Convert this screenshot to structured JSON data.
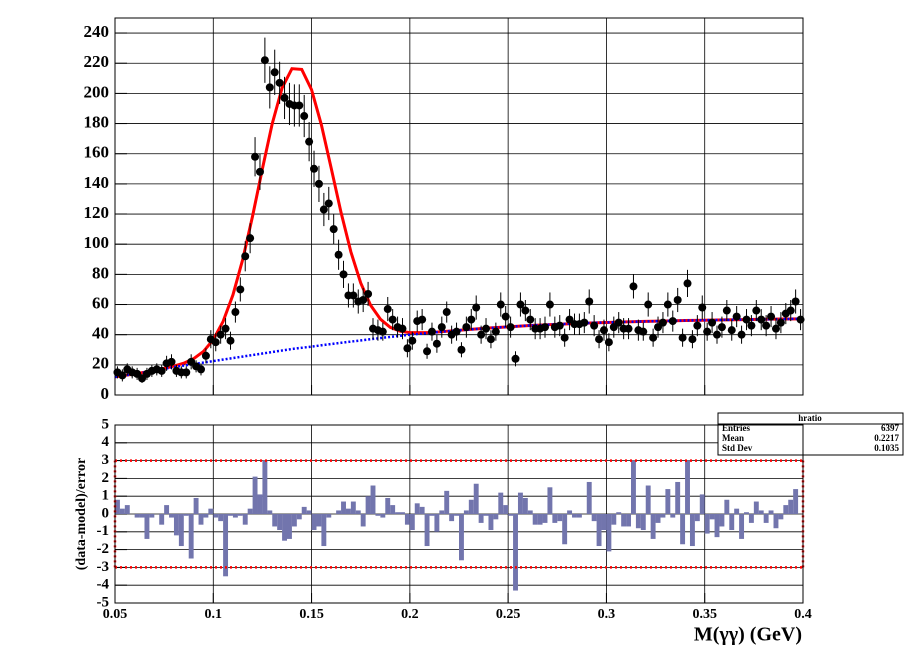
{
  "chart_data": [
    {
      "type": "scatter",
      "bins": [
        0.05,
        0.0525,
        0.055,
        0.0575,
        0.06,
        0.0625,
        0.065,
        0.0675,
        0.07,
        0.0725,
        0.075,
        0.0775,
        0.08,
        0.0825,
        0.085,
        0.0875,
        0.09,
        0.0925,
        0.095,
        0.0975,
        0.1,
        0.1025,
        0.105,
        0.1075,
        0.11,
        0.1125,
        0.115,
        0.1175,
        0.12,
        0.1225,
        0.125,
        0.1275,
        0.13,
        0.1325,
        0.135,
        0.1375,
        0.14,
        0.1425,
        0.145,
        0.1475,
        0.15,
        0.1525,
        0.155,
        0.1575,
        0.16,
        0.1625,
        0.165,
        0.1675,
        0.17,
        0.1725,
        0.175,
        0.1775,
        0.18,
        0.1825,
        0.185,
        0.1875,
        0.19,
        0.1925,
        0.195,
        0.1975,
        0.2,
        0.2025,
        0.205,
        0.2075,
        0.21,
        0.2125,
        0.215,
        0.2175,
        0.22,
        0.2225,
        0.225,
        0.2275,
        0.23,
        0.2325,
        0.235,
        0.2375,
        0.24,
        0.2425,
        0.245,
        0.2475,
        0.25,
        0.2525,
        0.255,
        0.2575,
        0.26,
        0.2625,
        0.265,
        0.2675,
        0.27,
        0.2725,
        0.275,
        0.2775,
        0.28,
        0.2825,
        0.285,
        0.2875,
        0.29,
        0.2925,
        0.295,
        0.2975,
        0.3,
        0.3025,
        0.305,
        0.3075,
        0.31,
        0.3125,
        0.315,
        0.3175,
        0.32,
        0.3225,
        0.325,
        0.3275,
        0.33,
        0.3325,
        0.335,
        0.3375,
        0.34,
        0.3425,
        0.345,
        0.3475,
        0.35,
        0.3525,
        0.355,
        0.3575,
        0.36,
        0.3625,
        0.365,
        0.3675,
        0.37,
        0.3725,
        0.375,
        0.3775,
        0.38,
        0.3825,
        0.385,
        0.3875,
        0.39,
        0.3925,
        0.395,
        0.3975,
        0.4
      ],
      "values": [
        15,
        13,
        17,
        15,
        14,
        11,
        14,
        16,
        17,
        16,
        21,
        22,
        16,
        15,
        15,
        22,
        19,
        17,
        26,
        37,
        35,
        40,
        44,
        36,
        55,
        70,
        92,
        104,
        158,
        148,
        222,
        204,
        214,
        207,
        197,
        193,
        192,
        192,
        185,
        168,
        150,
        140,
        123,
        127,
        110,
        93,
        80,
        66,
        66,
        62,
        63,
        67,
        44,
        43,
        42,
        57,
        50,
        45,
        44,
        31,
        36,
        49,
        50,
        29,
        42,
        34,
        45,
        55,
        40,
        42,
        30,
        45,
        50,
        58,
        40,
        44,
        37,
        42,
        60,
        52,
        45,
        24,
        60,
        56,
        50,
        44,
        44,
        45,
        60,
        45,
        46,
        38,
        50,
        47,
        47,
        48,
        62,
        46,
        37,
        43,
        35,
        45,
        48,
        44,
        44,
        72,
        43,
        42,
        60,
        38,
        45,
        48,
        60,
        49,
        63,
        38,
        74,
        37,
        46,
        58,
        42,
        48,
        40,
        45,
        56,
        43,
        52,
        40,
        50,
        46,
        56,
        50,
        46,
        52,
        44,
        48,
        54,
        56,
        62,
        50
      ],
      "errors": [
        4,
        4,
        4,
        4,
        4,
        3,
        4,
        4,
        4,
        4,
        5,
        5,
        4,
        4,
        4,
        5,
        4,
        4,
        5,
        6,
        6,
        6,
        7,
        6,
        7,
        8,
        10,
        10,
        13,
        12,
        15,
        14,
        15,
        14,
        14,
        14,
        14,
        14,
        14,
        13,
        12,
        12,
        11,
        11,
        10,
        10,
        9,
        8,
        8,
        8,
        8,
        8,
        7,
        7,
        6,
        8,
        7,
        7,
        7,
        6,
        6,
        7,
        7,
        5,
        6,
        6,
        7,
        7,
        6,
        6,
        5,
        7,
        7,
        8,
        6,
        7,
        6,
        6,
        8,
        7,
        7,
        5,
        8,
        7,
        7,
        7,
        7,
        7,
        8,
        7,
        7,
        6,
        7,
        7,
        7,
        7,
        8,
        7,
        6,
        7,
        6,
        7,
        7,
        7,
        7,
        8,
        7,
        6,
        8,
        6,
        7,
        7,
        8,
        7,
        8,
        6,
        9,
        6,
        7,
        8,
        6,
        7,
        6,
        7,
        7,
        7,
        7,
        6,
        7,
        7,
        7,
        7,
        7,
        7,
        7,
        7,
        7,
        7,
        8,
        7
      ],
      "color": "#000000",
      "curves": [
        {
          "x": [
            0.05,
            0.06,
            0.07,
            0.08,
            0.085,
            0.09,
            0.095,
            0.1,
            0.105,
            0.11,
            0.115,
            0.12,
            0.125,
            0.13,
            0.135,
            0.14,
            0.145,
            0.15,
            0.155,
            0.16,
            0.165,
            0.17,
            0.175,
            0.18,
            0.185,
            0.19,
            0.195,
            0.2,
            0.21,
            0.22,
            0.23,
            0.24,
            0.25,
            0.26,
            0.27,
            0.28,
            0.29,
            0.3,
            0.31,
            0.32,
            0.33,
            0.34,
            0.35,
            0.36,
            0.37,
            0.38,
            0.39,
            0.4
          ],
          "values": [
            12,
            14,
            16.1,
            19.2,
            21.1,
            24.1,
            28.9,
            36.7,
            48.8,
            66.4,
            90,
            118.7,
            150.1,
            180,
            203.6,
            216.4,
            215.9,
            202.4,
            179.1,
            150.3,
            121,
            94.9,
            74.3,
            59.6,
            50.3,
            44.9,
            42.3,
            41.4,
            41.4,
            42.4,
            43.4,
            44.4,
            45.2,
            46,
            46.6,
            47.2,
            47.7,
            48.1,
            48.5,
            48.8,
            49.1,
            49.4,
            49.6,
            49.8,
            50,
            50.2,
            50.4,
            50.5
          ],
          "color": "#ff0000",
          "style": "solid"
        },
        {
          "x": [
            0.05,
            0.06,
            0.07,
            0.08,
            0.09,
            0.1,
            0.11,
            0.12,
            0.13,
            0.14,
            0.15,
            0.16,
            0.17,
            0.18,
            0.19,
            0.2,
            0.21,
            0.22,
            0.23,
            0.24,
            0.25,
            0.26,
            0.27,
            0.28,
            0.29,
            0.3,
            0.31,
            0.32,
            0.33,
            0.34,
            0.35,
            0.36,
            0.37,
            0.38,
            0.39,
            0.4
          ],
          "values": [
            12,
            14,
            16,
            18.5,
            20.5,
            22.5,
            24.5,
            26.5,
            28.5,
            30.5,
            32.1,
            33.8,
            35.4,
            37,
            38.5,
            40,
            41.2,
            42.4,
            43.4,
            44.4,
            45.2,
            46,
            46.6,
            47.2,
            47.7,
            48.1,
            48.5,
            48.8,
            49.1,
            49.4,
            49.6,
            49.8,
            50,
            50.2,
            50.4,
            50.5
          ],
          "color": "#0000ff",
          "style": "dotted"
        }
      ],
      "xlim": [
        0.05,
        0.4
      ],
      "ylim": [
        0,
        250
      ],
      "xticks": [
        0.05,
        0.1,
        0.15,
        0.2,
        0.25,
        0.3,
        0.35,
        0.4
      ],
      "xtick_labels": false,
      "yticks": [
        0,
        20,
        40,
        60,
        80,
        100,
        120,
        140,
        160,
        180,
        200,
        220,
        240
      ],
      "grid": true
    },
    {
      "type": "histogram",
      "ylabel": "(data-model)/error",
      "xlabel": "M(γγ) (GeV)",
      "bins": [
        0.05,
        0.0525,
        0.055,
        0.0575,
        0.06,
        0.0625,
        0.065,
        0.0675,
        0.07,
        0.0725,
        0.075,
        0.0775,
        0.08,
        0.0825,
        0.085,
        0.0875,
        0.09,
        0.0925,
        0.095,
        0.0975,
        0.1,
        0.1025,
        0.105,
        0.1075,
        0.11,
        0.1125,
        0.115,
        0.1175,
        0.12,
        0.1225,
        0.125,
        0.1275,
        0.13,
        0.1325,
        0.135,
        0.1375,
        0.14,
        0.1425,
        0.145,
        0.1475,
        0.15,
        0.1525,
        0.155,
        0.1575,
        0.16,
        0.1625,
        0.165,
        0.1675,
        0.17,
        0.1725,
        0.175,
        0.1775,
        0.18,
        0.1825,
        0.185,
        0.1875,
        0.19,
        0.1925,
        0.195,
        0.1975,
        0.2,
        0.2025,
        0.205,
        0.2075,
        0.21,
        0.2125,
        0.215,
        0.2175,
        0.22,
        0.2225,
        0.225,
        0.2275,
        0.23,
        0.2325,
        0.235,
        0.2375,
        0.24,
        0.2425,
        0.245,
        0.2475,
        0.25,
        0.2525,
        0.255,
        0.2575,
        0.26,
        0.2625,
        0.265,
        0.2675,
        0.27,
        0.2725,
        0.275,
        0.2775,
        0.28,
        0.2825,
        0.285,
        0.2875,
        0.29,
        0.2925,
        0.295,
        0.2975,
        0.3,
        0.3025,
        0.305,
        0.3075,
        0.31,
        0.3125,
        0.315,
        0.3175,
        0.32,
        0.3225,
        0.325,
        0.3275,
        0.33,
        0.3325,
        0.335,
        0.3375,
        0.34,
        0.3425,
        0.345,
        0.3475,
        0.35,
        0.3525,
        0.355,
        0.3575,
        0.36,
        0.3625,
        0.365,
        0.3675,
        0.37,
        0.3725,
        0.375,
        0.3775,
        0.38,
        0.3825,
        0.385,
        0.3875,
        0.39,
        0.3925,
        0.395,
        0.3975,
        0.4
      ],
      "values": [
        0.8,
        0.3,
        0.5,
        0,
        -0.2,
        -0.2,
        -1.4,
        -0.2,
        0,
        -0.6,
        0.5,
        -0.2,
        -1.2,
        -1.8,
        -0.1,
        -2.5,
        0.9,
        -0.6,
        -0.2,
        0.3,
        -0.2,
        -0.4,
        -3.5,
        -0.1,
        -0.2,
        -0.1,
        -0.6,
        0.3,
        2.1,
        1.1,
        3,
        0.2,
        -0.7,
        -0.9,
        -1.5,
        -1.4,
        -0.7,
        -0.3,
        0.4,
        0.2,
        -0.9,
        -0.7,
        -1.8,
        -0.2,
        0,
        0.2,
        0.7,
        0.3,
        0.7,
        0.2,
        -0.7,
        1.0,
        1.6,
        -0.1,
        -0.2,
        0.9,
        0.5,
        0.1,
        0.1,
        -0.6,
        -0.9,
        0.6,
        0.4,
        -1.8,
        -0.1,
        -1.0,
        0.2,
        1.3,
        -0.4,
        -0.1,
        -2.6,
        0.2,
        0.8,
        1.7,
        -0.5,
        -0.1,
        -0.9,
        -0.3,
        1.2,
        0.5,
        -0.1,
        -4.3,
        1.2,
        0.9,
        0.2,
        -0.6,
        -0.6,
        -0.5,
        1.5,
        -0.5,
        -0.4,
        -1.7,
        0.2,
        -0.2,
        -0.2,
        0,
        1.8,
        -0.4,
        -1.8,
        -0.9,
        -2.1,
        -0.6,
        0.1,
        -0.7,
        -0.7,
        3.0,
        -0.8,
        -0.9,
        1.6,
        -1.4,
        -0.5,
        -0.2,
        1.4,
        -0.2,
        1.8,
        -1.7,
        3.0,
        -1.8,
        -0.4,
        1.1,
        -1.1,
        -0.3,
        -1.3,
        -0.7,
        0.8,
        -0.9,
        0.3,
        -1.4,
        0.1,
        -0.5,
        0.7,
        0.2,
        -0.5,
        0.2,
        -0.8,
        -0.3,
        0.5,
        0.8,
        1.4,
        0.0
      ],
      "color": "#7275ad",
      "limits": [
        -3,
        3
      ],
      "limits_color": "#ff0000",
      "xlim": [
        0.05,
        0.4
      ],
      "ylim": [
        -5,
        5
      ],
      "xticks": [
        0.05,
        0.1,
        0.15,
        0.2,
        0.25,
        0.3,
        0.35,
        0.4
      ],
      "xtick_labels": true,
      "yticks": [
        -5,
        -4,
        -3,
        -2,
        -1,
        0,
        1,
        2,
        3,
        4,
        5
      ],
      "grid": true,
      "stats": {
        "title": "hratio",
        "rows": [
          {
            "label": "Entries",
            "value": 6397
          },
          {
            "label": "Mean",
            "value": 0.2217
          },
          {
            "label": "Std Dev",
            "value": 0.1035
          }
        ]
      }
    }
  ]
}
